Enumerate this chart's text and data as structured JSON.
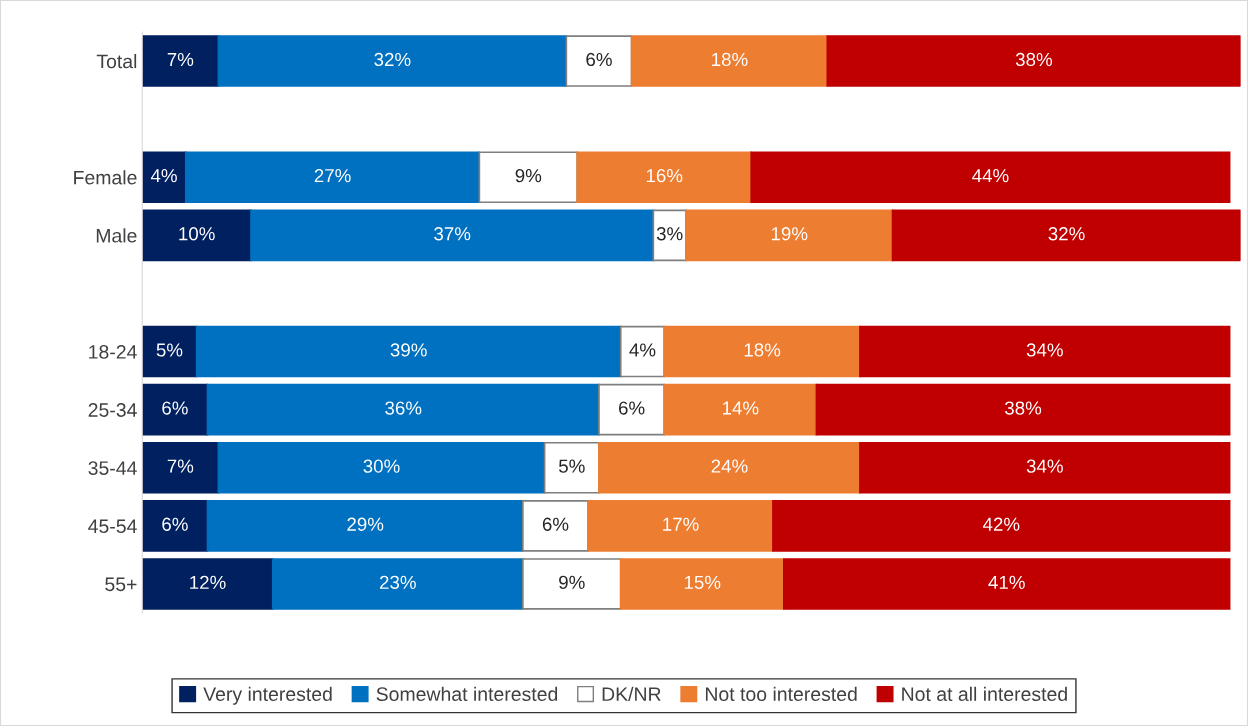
{
  "chart_data": {
    "type": "bar",
    "orientation": "horizontal",
    "stacked": true,
    "grid": false,
    "legend": "bottom",
    "tick_labels": "y",
    "categories": [
      "Total",
      null,
      "Female",
      "Male",
      null,
      "18-24",
      "25-34",
      "35-44",
      "45-54",
      "55+"
    ],
    "series": [
      {
        "name": "Very interested",
        "color": "#002060",
        "values": [
          7,
          null,
          4,
          10,
          null,
          5,
          6,
          7,
          6,
          12
        ],
        "value_labels": [
          "7%",
          null,
          "4%",
          "10%",
          null,
          "5%",
          "6%",
          "7%",
          "6%",
          "12%"
        ]
      },
      {
        "name": "Somewhat interested",
        "color": "#0070c0",
        "values": [
          32,
          null,
          27,
          37,
          null,
          39,
          36,
          30,
          29,
          23
        ],
        "value_labels": [
          "32%",
          null,
          "27%",
          "37%",
          null,
          "39%",
          "36%",
          "30%",
          "29%",
          "23%"
        ]
      },
      {
        "name": "DK/NR",
        "color": "#ffffff",
        "values": [
          6,
          null,
          9,
          3,
          null,
          4,
          6,
          5,
          6,
          9
        ],
        "value_labels": [
          "6%",
          null,
          "9%",
          "3%",
          null,
          "4%",
          "6%",
          "5%",
          "6%",
          "9%"
        ]
      },
      {
        "name": "Not too interested",
        "color": "#ed7d31",
        "values": [
          18,
          null,
          16,
          19,
          null,
          18,
          14,
          24,
          17,
          15
        ],
        "value_labels": [
          "18%",
          null,
          "16%",
          "19%",
          null,
          "18%",
          "14%",
          "24%",
          "17%",
          "15%"
        ]
      },
      {
        "name": "Not at all interested",
        "color": "#c00000",
        "values": [
          38,
          null,
          44,
          32,
          null,
          34,
          38,
          34,
          42,
          41
        ],
        "value_labels": [
          "38%",
          null,
          "44%",
          "32%",
          null,
          "34%",
          "38%",
          "34%",
          "42%",
          "41%"
        ]
      }
    ]
  }
}
